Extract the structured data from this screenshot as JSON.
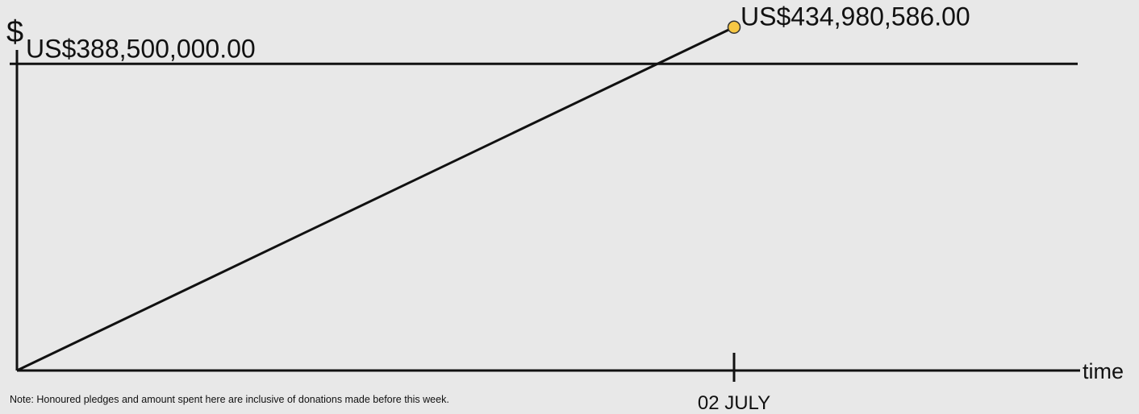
{
  "chart_data": {
    "type": "line",
    "ylabel": "$",
    "xlabel": "time",
    "threshold": {
      "value": 388500000,
      "label": "US$388,500,000.00"
    },
    "series": [
      {
        "points": [
          {
            "x": "",
            "y": 0
          },
          {
            "x": "02 JULY",
            "y": 434980586
          }
        ]
      }
    ],
    "current": {
      "value": 434980586,
      "label": "US$434,980,586.00"
    },
    "x_ticks": [
      "02 JULY"
    ],
    "ylim": [
      0,
      500000000
    ],
    "grid": false,
    "legend": "none",
    "colors": {
      "line": "#111111",
      "marker": "#f6c744",
      "marker_stroke": "#333333",
      "background": "#e8e8e8"
    }
  },
  "note": "Note: Honoured pledges and amount spent here are inclusive of donations made before this week."
}
